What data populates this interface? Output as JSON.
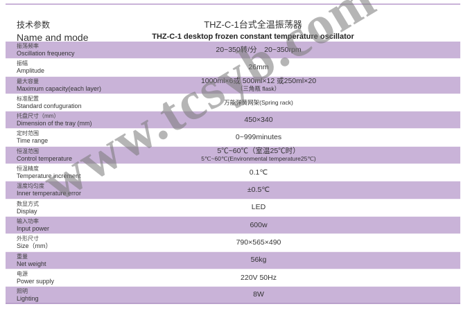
{
  "header": {
    "label_cn": "技术参数",
    "label_en": "Name and mode",
    "title_cn": "THZ-C-1台式全温振荡器",
    "title_en": "THZ-C-1 desktop frozen constant temperature oscillator"
  },
  "rows": [
    {
      "cn": "振荡频率",
      "en": "Oscillation frequency",
      "value": "20~350转/分　20~350rpm",
      "sub": ""
    },
    {
      "cn": "振幅",
      "en": "Amplitude",
      "value": "26mm",
      "sub": ""
    },
    {
      "cn": "最大容量",
      "en": "Maximum capacity(each layer)",
      "value": "1000ml×6或 500ml×12 或250ml×20",
      "sub": "（三角瓶 flask）"
    },
    {
      "cn": "标准配置",
      "en": "Standard confuguration",
      "value": "",
      "sub": "万能弹簧网架(Spring rack)"
    },
    {
      "cn": "托盘尺寸（mm）",
      "en": "Dimension of the tray (mm)",
      "value": "450×340",
      "sub": ""
    },
    {
      "cn": "定时范围",
      "en": "Time range",
      "value": "0~999minutes",
      "sub": ""
    },
    {
      "cn": "恒温范围",
      "en": "Control temperature",
      "value": "5℃~60℃（室温25℃时）",
      "sub": "5℃~60℃(Environmental temperature25℃)"
    },
    {
      "cn": "恒温精度",
      "en": "Temperature increment",
      "value": "0.1℃",
      "sub": ""
    },
    {
      "cn": "温度均匀度",
      "en": "Inner temperature error",
      "value": "±0.5℃",
      "sub": ""
    },
    {
      "cn": "数显方式",
      "en": "Display",
      "value": "LED",
      "sub": ""
    },
    {
      "cn": "输入功率",
      "en": "Input power",
      "value": "600w",
      "sub": ""
    },
    {
      "cn": "外形尺寸",
      "en": "Size（mm）",
      "value": "790×565×490",
      "sub": ""
    },
    {
      "cn": "重量",
      "en": "Net weight",
      "value": "56kg",
      "sub": ""
    },
    {
      "cn": "电源",
      "en": "Power supply",
      "value": "220V  50Hz",
      "sub": ""
    },
    {
      "cn": "照明",
      "en": "Lighting",
      "value": "8W",
      "sub": ""
    }
  ],
  "watermark": "www.tcsyb.com",
  "colors": {
    "row_alt": "#c9b3d8",
    "rule": "#c9b3d8"
  }
}
